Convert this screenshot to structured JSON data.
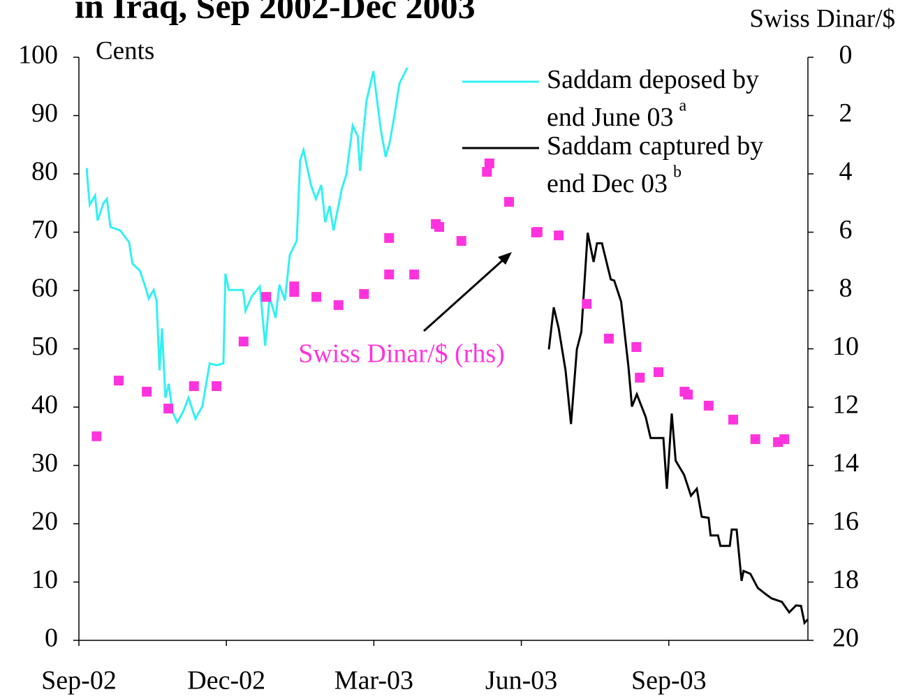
{
  "chart_data": {
    "type": "line",
    "title": "in Iraq, Sep 2002-Dec 2003",
    "y_label": "Cents",
    "y2_label": "Swiss Dinar/$",
    "annotation": "Swiss Dinar/$ (rhs)",
    "xlim": [
      0,
      14.83
    ],
    "xticks": [
      {
        "value": 0,
        "label": "Sep-02"
      },
      {
        "value": 3,
        "label": "Dec-02"
      },
      {
        "value": 6,
        "label": "Mar-03"
      },
      {
        "value": 9,
        "label": "Jun-03"
      },
      {
        "value": 12,
        "label": "Sep-03"
      }
    ],
    "ylim": [
      0,
      100
    ],
    "yticks": [
      0,
      10,
      20,
      30,
      40,
      50,
      60,
      70,
      80,
      90,
      100
    ],
    "y2lim": [
      0,
      20
    ],
    "y2ticks": [
      0,
      2,
      4,
      6,
      8,
      10,
      12,
      14,
      16,
      18,
      20
    ],
    "y2_inverted": true,
    "series": [
      {
        "name": "Saddam deposed by end June 03",
        "note": "a",
        "type": "line",
        "color": "#33f0f0",
        "x": [
          0.16,
          0.18,
          0.22,
          0.33,
          0.38,
          0.5,
          0.57,
          0.64,
          0.84,
          1.02,
          1.09,
          1.24,
          1.35,
          1.42,
          1.52,
          1.58,
          1.64,
          1.69,
          1.76,
          1.83,
          1.9,
          2.0,
          2.12,
          2.23,
          2.37,
          2.51,
          2.66,
          2.8,
          2.94,
          2.98,
          3.05,
          3.34,
          3.39,
          3.51,
          3.68,
          3.79,
          3.88,
          4.0,
          4.08,
          4.19,
          4.29,
          4.43,
          4.5,
          4.57,
          4.72,
          4.82,
          4.93,
          5.01,
          5.1,
          5.18,
          5.35,
          5.44,
          5.57,
          5.67,
          5.72,
          5.78,
          5.85,
          5.99,
          6.14,
          6.24,
          6.32,
          6.42,
          6.52,
          6.68
        ],
        "values": [
          81,
          78.4,
          74.7,
          76.3,
          72,
          75,
          75.7,
          70.9,
          70.3,
          68.3,
          64.6,
          63.4,
          60.7,
          58.6,
          60.1,
          58.3,
          46.3,
          53.5,
          41.6,
          44,
          39.2,
          37.4,
          39.2,
          41.6,
          38,
          40.1,
          47.5,
          47.2,
          47.5,
          62.9,
          60.1,
          60.1,
          56.5,
          58.9,
          60.7,
          50.5,
          58.9,
          55.3,
          61,
          58.3,
          66.1,
          68.5,
          82.3,
          84.1,
          78.1,
          75.7,
          78.1,
          71.7,
          74.5,
          70.3,
          77.5,
          79.9,
          88.3,
          86.5,
          80.5,
          86.5,
          92.5,
          97.6,
          87.7,
          82.9,
          85.3,
          90.1,
          95.5,
          98.2
        ]
      },
      {
        "name": "Saddam captured by end Dec 03",
        "note": "b",
        "type": "line",
        "color": "#000000",
        "x": [
          9.56,
          9.66,
          9.76,
          9.9,
          10.01,
          10.13,
          10.22,
          10.35,
          10.47,
          10.54,
          10.64,
          10.82,
          10.89,
          11.03,
          11.18,
          11.25,
          11.35,
          11.53,
          11.63,
          11.89,
          11.96,
          12.06,
          12.14,
          12.31,
          12.45,
          12.57,
          12.67,
          12.81,
          12.85,
          13.0,
          13.05,
          13.24,
          13.28,
          13.38,
          13.48,
          13.52,
          13.66,
          13.81,
          13.99,
          14.09,
          14.3,
          14.45,
          14.59,
          14.69,
          14.76,
          14.83
        ],
        "values": [
          49.9,
          57.1,
          53.5,
          46.3,
          37.1,
          49.9,
          52.9,
          69.9,
          64.9,
          68.1,
          68.1,
          61.9,
          61.7,
          58.1,
          46.9,
          40.1,
          42.2,
          38.3,
          34.7,
          34.7,
          26,
          38.9,
          30.8,
          28.4,
          24.8,
          26,
          21.2,
          21,
          18,
          18,
          16.2,
          16.2,
          19,
          19,
          10.2,
          11.9,
          11.4,
          9,
          7.8,
          7.2,
          6.6,
          4.8,
          6,
          5.9,
          3,
          3.6
        ]
      },
      {
        "type": "scatter",
        "axis": "y2",
        "color": "#ff33dd",
        "x": [
          0.36,
          0.81,
          1.38,
          1.82,
          2.34,
          2.8,
          3.35,
          3.81,
          4.38,
          4.38,
          4.83,
          5.28,
          5.8,
          6.31,
          6.31,
          6.82,
          7.26,
          7.33,
          7.78,
          8.3,
          8.35,
          8.75,
          9.3,
          9.33,
          9.76,
          10.33,
          10.78,
          11.34,
          11.41,
          11.79,
          12.32,
          12.39,
          12.81,
          13.31,
          13.76,
          14.22,
          14.35
        ],
        "values": [
          13.0,
          11.09,
          11.47,
          12.05,
          11.28,
          11.28,
          9.75,
          8.22,
          7.86,
          8.05,
          8.22,
          8.5,
          8.12,
          6.2,
          7.45,
          7.45,
          5.72,
          5.82,
          6.3,
          3.93,
          3.64,
          4.96,
          6.01,
          5.99,
          6.11,
          8.46,
          9.65,
          9.94,
          10.99,
          10.8,
          11.47,
          11.57,
          11.95,
          12.43,
          13.1,
          13.2,
          13.1
        ]
      }
    ]
  }
}
